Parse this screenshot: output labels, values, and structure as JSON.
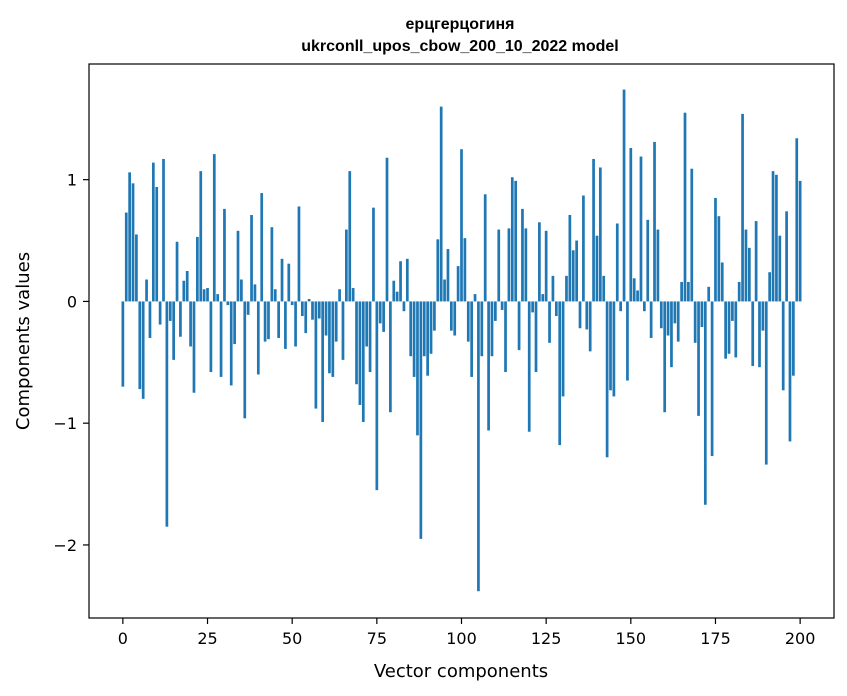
{
  "chart_data": {
    "type": "bar",
    "title_line1": "ерцгерцогиня",
    "title_line2": "ukrconll_upos_cbow_200_10_2022 model",
    "xlabel": "Vector components",
    "ylabel": "Components values",
    "xlim": [
      -10,
      210
    ],
    "ylim": [
      -2.6,
      1.95
    ],
    "xticks": [
      0,
      25,
      50,
      75,
      100,
      125,
      150,
      175,
      200
    ],
    "xtick_labels": [
      "0",
      "25",
      "50",
      "75",
      "100",
      "125",
      "150",
      "175",
      "200"
    ],
    "yticks": [
      -2,
      -1,
      0,
      1
    ],
    "ytick_labels": [
      "−2",
      "−1",
      "0",
      "1"
    ],
    "bar_color": "#1f77b4",
    "grid": false,
    "values": [
      -0.7,
      0.73,
      1.06,
      0.97,
      0.55,
      -0.72,
      -0.8,
      0.18,
      -0.3,
      1.14,
      0.94,
      -0.19,
      1.17,
      -1.85,
      -0.16,
      -0.48,
      0.49,
      -0.29,
      0.17,
      0.25,
      -0.37,
      -0.75,
      0.53,
      1.07,
      0.1,
      0.11,
      -0.58,
      1.21,
      0.06,
      -0.62,
      0.76,
      -0.03,
      -0.69,
      -0.35,
      0.58,
      0.18,
      -0.96,
      -0.11,
      0.71,
      0.14,
      -0.6,
      0.89,
      -0.33,
      -0.31,
      0.61,
      0.1,
      -0.3,
      0.35,
      -0.39,
      0.31,
      -0.03,
      -0.37,
      0.78,
      -0.12,
      -0.26,
      0.02,
      -0.15,
      -0.88,
      -0.14,
      -0.99,
      -0.28,
      -0.59,
      -0.62,
      -0.33,
      0.1,
      -0.48,
      0.59,
      1.07,
      0.11,
      -0.68,
      -0.85,
      -0.99,
      -0.37,
      -0.58,
      0.77,
      -1.55,
      -0.18,
      -0.25,
      1.18,
      -0.91,
      0.17,
      0.08,
      0.33,
      -0.08,
      0.35,
      -0.45,
      -0.62,
      -1.1,
      -1.95,
      -0.45,
      -0.61,
      -0.43,
      -0.24,
      0.51,
      1.6,
      0.18,
      0.43,
      -0.24,
      -0.28,
      0.29,
      1.25,
      0.52,
      -0.33,
      -0.62,
      0.06,
      -2.38,
      -0.45,
      0.88,
      -1.06,
      -0.45,
      -0.16,
      0.59,
      -0.07,
      -0.58,
      0.6,
      1.02,
      0.99,
      -0.4,
      0.76,
      0.6,
      -1.07,
      -0.09,
      -0.58,
      0.65,
      0.06,
      0.58,
      -0.34,
      0.21,
      -0.12,
      -1.18,
      -0.78,
      0.21,
      0.71,
      0.42,
      0.5,
      -0.22,
      0.87,
      -0.23,
      -0.41,
      1.17,
      0.54,
      1.1,
      0.21,
      -1.28,
      -0.73,
      -0.78,
      0.64,
      -0.08,
      1.74,
      -0.65,
      1.26,
      0.19,
      0.09,
      1.19,
      -0.08,
      0.67,
      -0.3,
      1.31,
      0.59,
      -0.22,
      -0.91,
      -0.28,
      -0.54,
      -0.18,
      -0.33,
      0.16,
      1.55,
      0.16,
      1.09,
      -0.34,
      -0.94,
      -0.21,
      -1.67,
      0.12,
      -1.27,
      0.85,
      0.7,
      0.32,
      -0.47,
      -0.43,
      -0.16,
      -0.46,
      0.16,
      1.54,
      0.59,
      0.44,
      -0.53,
      0.66,
      -0.54,
      -0.24,
      -1.34,
      0.24,
      1.07,
      1.04,
      0.54,
      -0.73,
      0.74,
      -1.15,
      -0.61,
      1.34,
      0.99
    ]
  }
}
